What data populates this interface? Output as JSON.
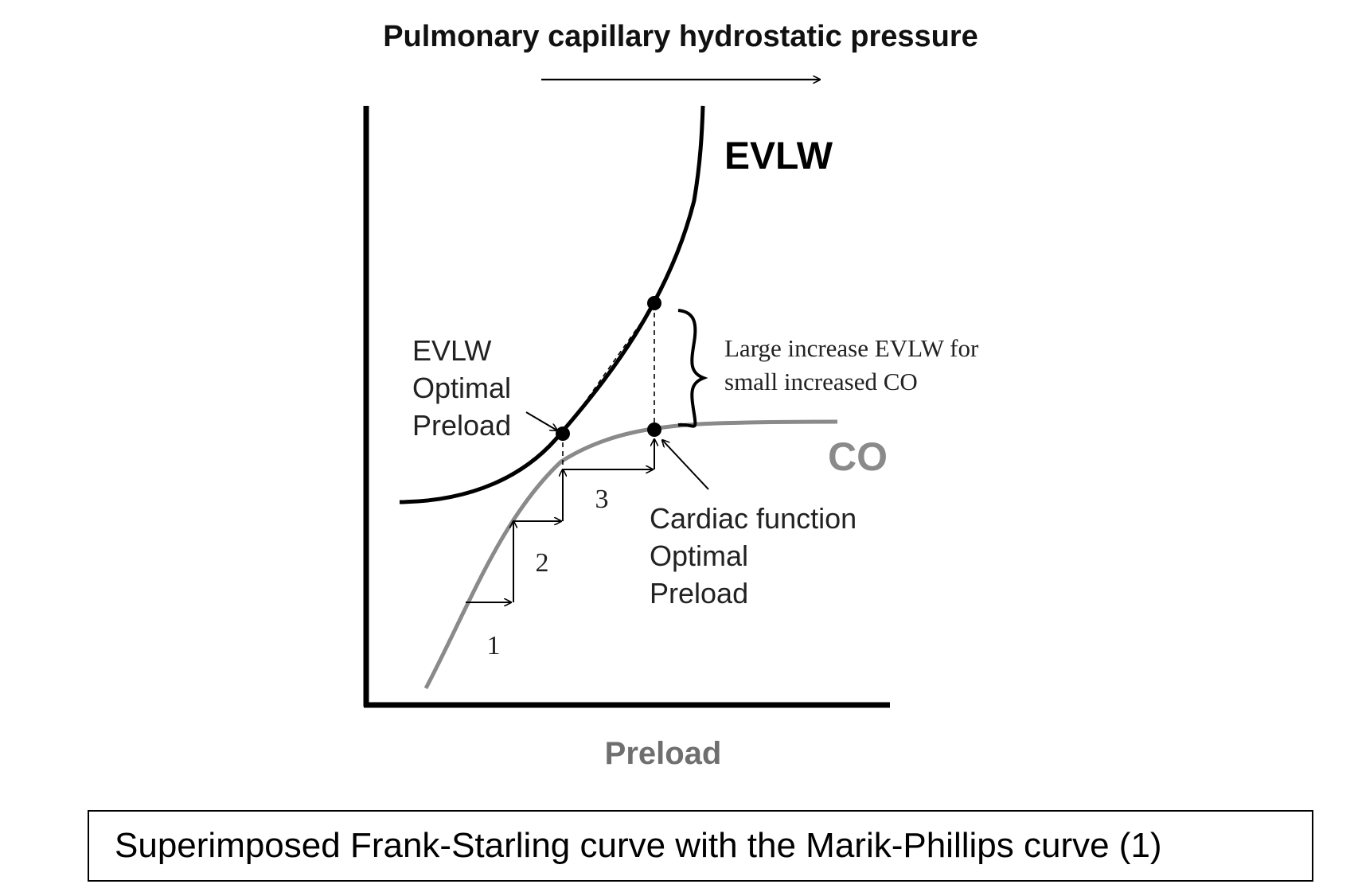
{
  "diagram": {
    "top_title": "Pulmonary capillary hydrostatic pressure",
    "x_axis_label": "Preload",
    "curves": {
      "evlw": {
        "label": "EVLW",
        "color": "#000000"
      },
      "co": {
        "label": "CO",
        "color": "#8a8a8a"
      }
    },
    "annotations": {
      "evlw_optimal": [
        "EVLW",
        "Optimal",
        "Preload"
      ],
      "brace_text": [
        "Large increase EVLW for",
        "small increased CO"
      ],
      "cardiac_optimal": [
        "Cardiac function",
        "Optimal",
        "Preload"
      ]
    },
    "steps": [
      "1",
      "2",
      "3"
    ]
  },
  "caption": "Superimposed Frank-Starling curve with the Marik-Phillips curve (1)"
}
